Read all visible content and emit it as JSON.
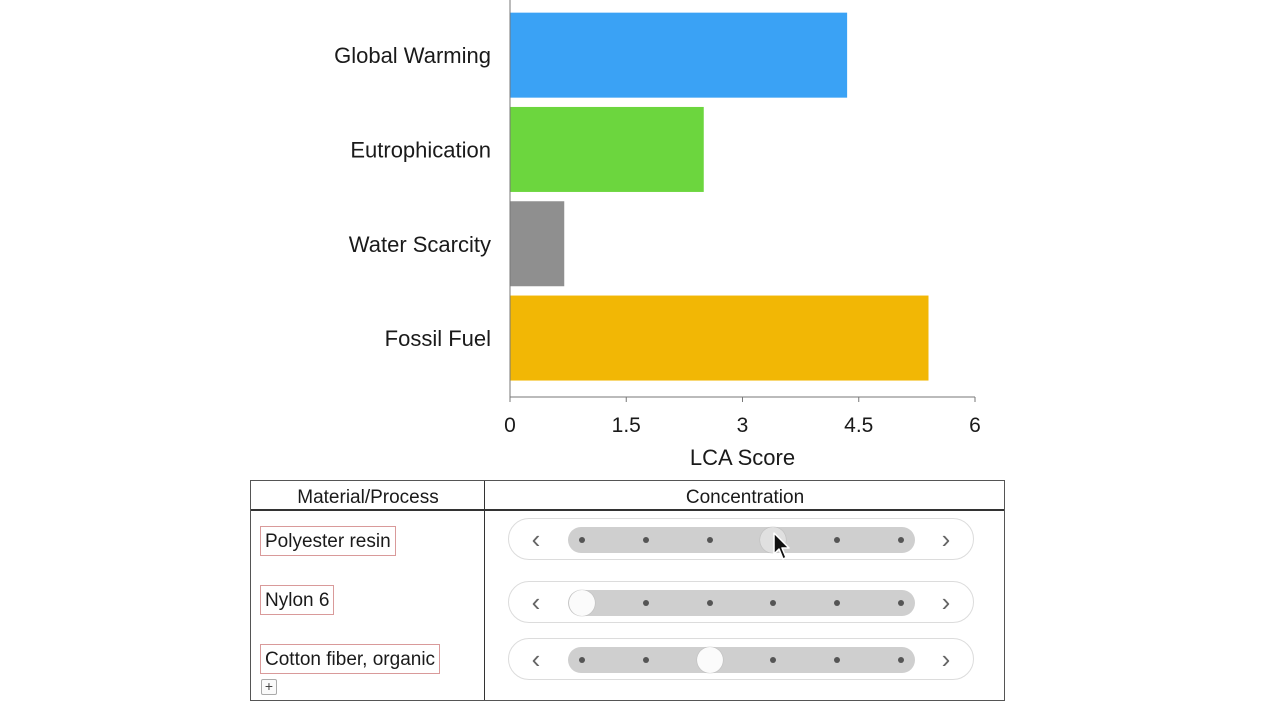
{
  "chart_data": {
    "type": "bar",
    "orientation": "horizontal",
    "categories": [
      "Global Warming",
      "Eutrophication",
      "Water Scarcity",
      "Fossil Fuel"
    ],
    "values": [
      4.35,
      2.5,
      0.7,
      5.4
    ],
    "colors": [
      "#3aa2f5",
      "#6cd63e",
      "#8f8f8f",
      "#f2b705"
    ],
    "xlabel": "LCA Score",
    "xlim": [
      0,
      6
    ],
    "xticks": [
      0,
      1.5,
      3,
      4.5,
      6
    ],
    "xtick_labels": [
      "0",
      "1.5",
      "3",
      "4.5",
      "6"
    ],
    "grid": false,
    "legend": "none"
  },
  "table": {
    "header_left": "Material/Process",
    "header_right": "Concentration",
    "add_icon": "plus-icon",
    "rows": [
      {
        "label": "Polyester resin",
        "steps": 6,
        "selected": 4,
        "active": true
      },
      {
        "label": "Nylon 6",
        "steps": 6,
        "selected": 1,
        "active": false
      },
      {
        "label": "Cotton fiber, organic",
        "steps": 6,
        "selected": 3,
        "active": false
      }
    ],
    "arrow_left_icon": "chevron-left-icon",
    "arrow_right_icon": "chevron-right-icon",
    "cursor_icon": "mouse-pointer-icon"
  }
}
